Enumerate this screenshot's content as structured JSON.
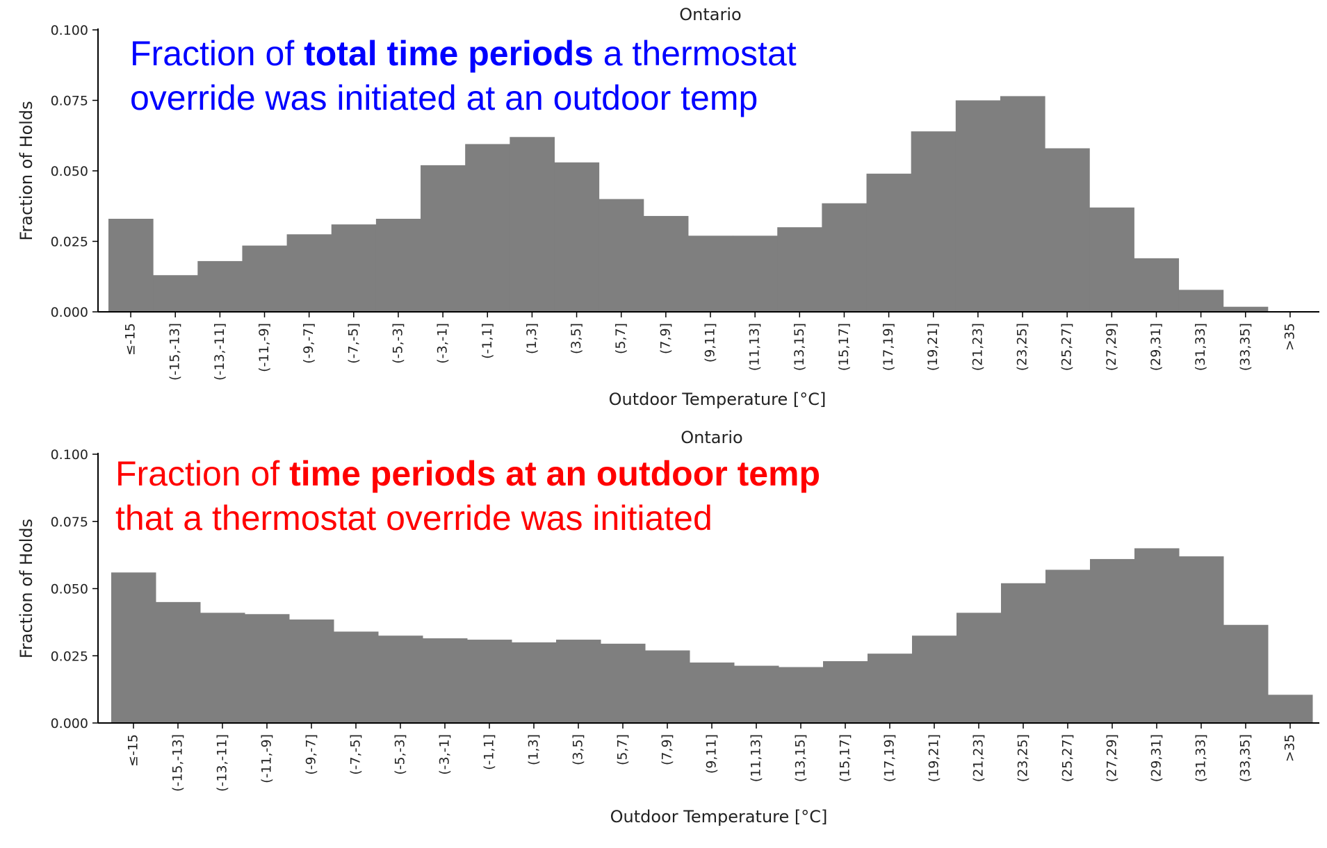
{
  "chart_data": [
    {
      "type": "bar",
      "title": "Ontario",
      "xlabel": "Outdoor Temperature [°C]",
      "ylabel": "Fraction of Holds",
      "ylim": [
        0,
        0.1
      ],
      "yticks": [
        "0.000",
        "0.025",
        "0.050",
        "0.075",
        "0.100"
      ],
      "categories": [
        "≤-15",
        "(-15,-13]",
        "(-13,-11]",
        "(-11,-9]",
        "(-9,-7]",
        "(-7,-5]",
        "(-5,-3]",
        "(-3,-1]",
        "(-1,1]",
        "(1,3]",
        "(3,5]",
        "(5,7]",
        "(7,9]",
        "(9,11]",
        "(11,13]",
        "(13,15]",
        "(15,17]",
        "(17,19]",
        "(19,21]",
        "(21,23]",
        "(23,25]",
        "(25,27]",
        "(27,29]",
        "(29,31]",
        "(31,33]",
        "(33,35]",
        ">35"
      ],
      "values": [
        0.033,
        0.013,
        0.018,
        0.0235,
        0.0275,
        0.031,
        0.033,
        0.052,
        0.0595,
        0.062,
        0.053,
        0.04,
        0.034,
        0.027,
        0.027,
        0.03,
        0.0385,
        0.049,
        0.064,
        0.075,
        0.0765,
        0.058,
        0.037,
        0.019,
        0.0078,
        0.0018,
        0
      ],
      "bar_color": "#7f7f7f",
      "grid": false,
      "annotation": {
        "color": "#0000ff",
        "line1_pre": "Fraction of ",
        "line1_bold": "total time periods",
        "line1_post": " a thermostat",
        "line2": "override was initiated at an outdoor temp"
      }
    },
    {
      "type": "bar",
      "title": "Ontario",
      "xlabel": "Outdoor Temperature [°C]",
      "ylabel": "Fraction of Holds",
      "ylim": [
        0,
        0.1
      ],
      "yticks": [
        "0.000",
        "0.025",
        "0.050",
        "0.075",
        "0.100"
      ],
      "categories": [
        "≤-15",
        "(-15,-13]",
        "(-13,-11]",
        "(-11,-9]",
        "(-9,-7]",
        "(-7,-5]",
        "(-5,-3]",
        "(-3,-1]",
        "(-1,1]",
        "(1,3]",
        "(3,5]",
        "(5,7]",
        "(7,9]",
        "(9,11]",
        "(11,13]",
        "(13,15]",
        "(15,17]",
        "(17,19]",
        "(19,21]",
        "(21,23]",
        "(23,25]",
        "(25,27]",
        "(27,29]",
        "(29,31]",
        "(31,33]",
        "(33,35]",
        ">35"
      ],
      "values": [
        0.056,
        0.045,
        0.041,
        0.0405,
        0.0385,
        0.034,
        0.0325,
        0.0315,
        0.031,
        0.03,
        0.031,
        0.0295,
        0.027,
        0.0225,
        0.0213,
        0.0208,
        0.023,
        0.0258,
        0.0325,
        0.041,
        0.052,
        0.057,
        0.061,
        0.065,
        0.062,
        0.0365,
        0.0105
      ],
      "bar_color": "#7f7f7f",
      "grid": false,
      "annotation": {
        "color": "#ff0000",
        "line1_pre": "Fraction of ",
        "line1_bold": "time periods at an outdoor temp",
        "line1_post": "",
        "line2": "that a thermostat override was initiated"
      }
    }
  ]
}
